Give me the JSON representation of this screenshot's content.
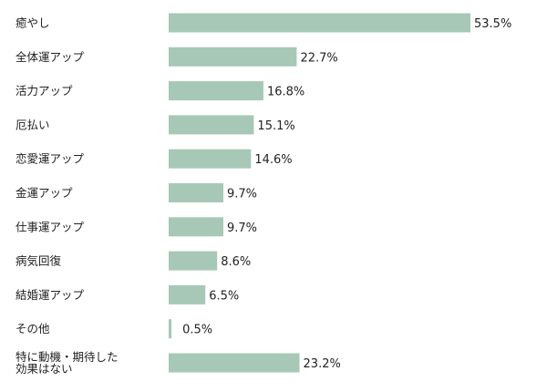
{
  "chart_data": {
    "type": "bar",
    "orientation": "horizontal",
    "title": "",
    "xlabel": "",
    "ylabel": "",
    "xlim": [
      0,
      53.5
    ],
    "grid": false,
    "legend": "none",
    "value_suffix": "%",
    "bar_color": "#a7c8b7",
    "categories": [
      "癒やし",
      "全体運アップ",
      "活力アップ",
      "厄払い",
      "恋愛運アップ",
      "金運アップ",
      "仕事運アップ",
      "病気回復",
      "結婚運アップ",
      "その他",
      "特に動機・期待した\n効果はない"
    ],
    "values": [
      53.5,
      22.7,
      16.8,
      15.1,
      14.6,
      9.7,
      9.7,
      8.6,
      6.5,
      0.5,
      23.2
    ]
  }
}
